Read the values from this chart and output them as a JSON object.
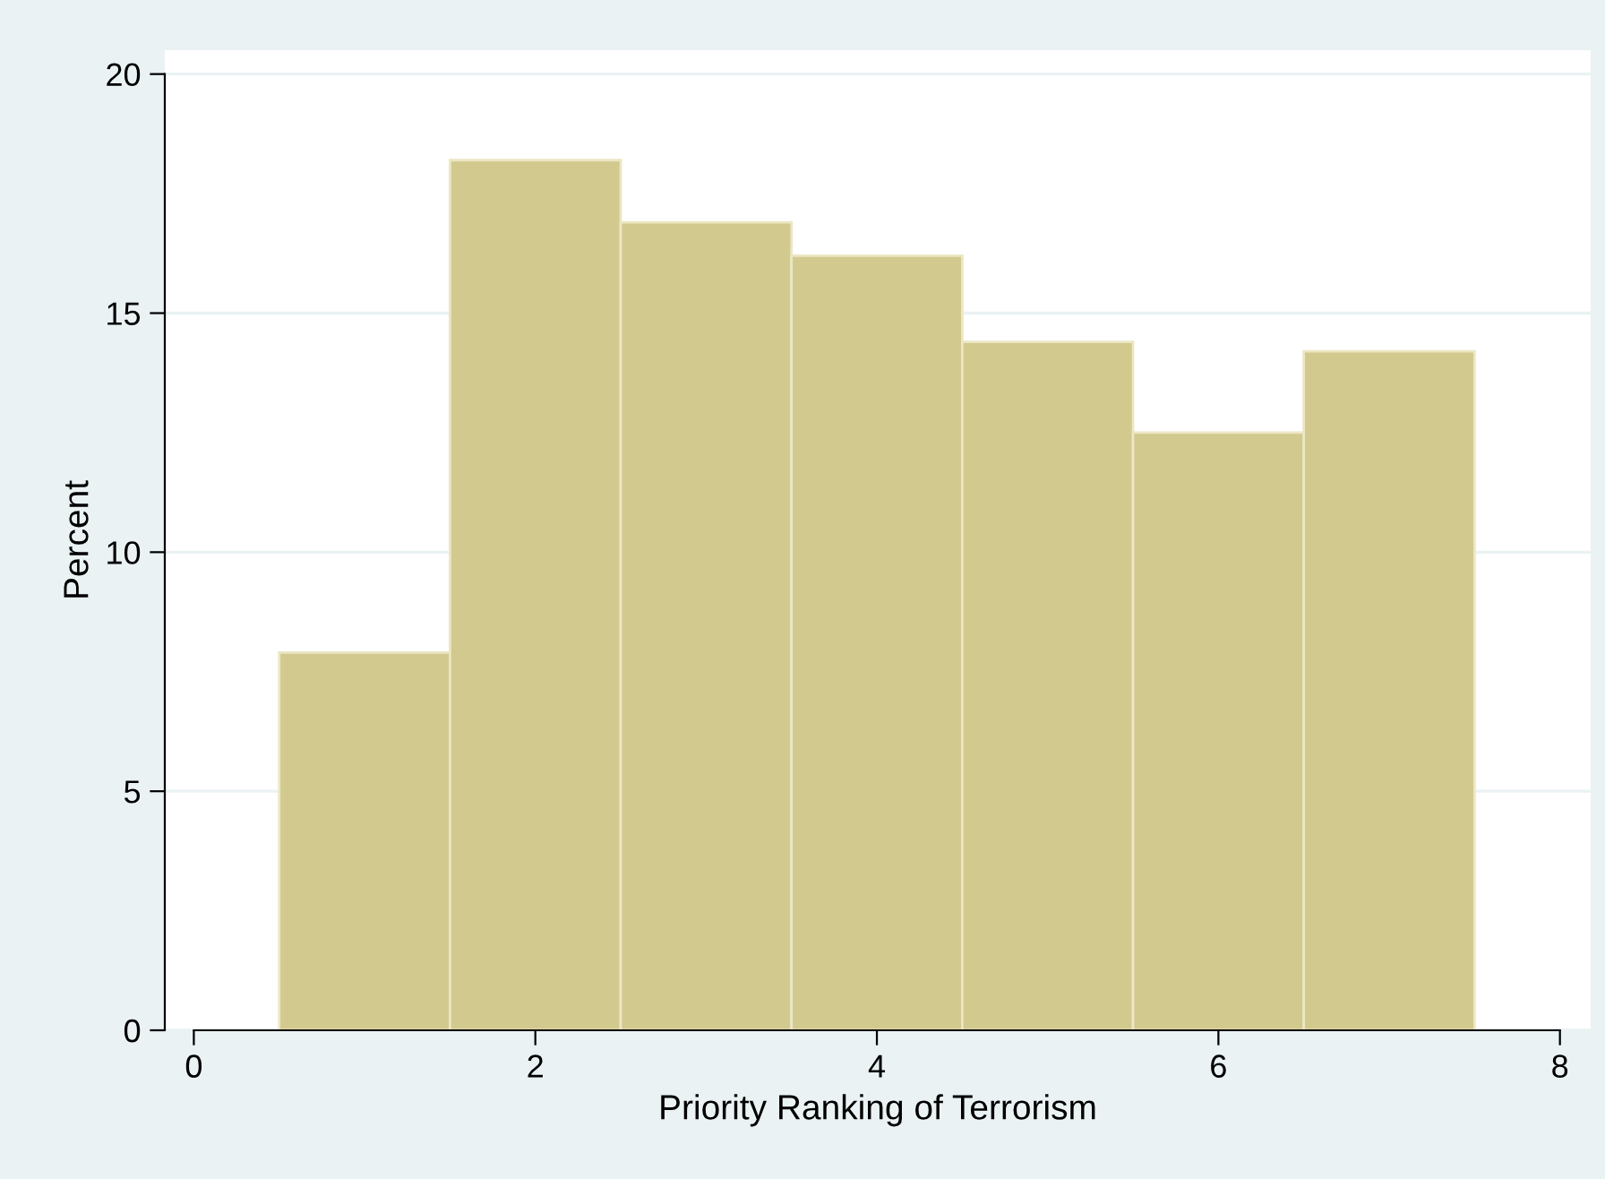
{
  "chart_data": {
    "type": "histogram",
    "xlabel": "Priority Ranking of Terrorism",
    "ylabel": "Percent",
    "bins": [
      0.5,
      1.5,
      2.5,
      3.5,
      4.5,
      5.5,
      6.5,
      7.5
    ],
    "values": [
      7.9,
      18.2,
      16.9,
      16.2,
      14.4,
      12.5,
      14.2
    ],
    "color": "#d2c98e",
    "xlim": [
      -0.17,
      8.18
    ],
    "ylim": [
      0,
      20.5
    ],
    "xticks": [
      0,
      2,
      4,
      6,
      8
    ],
    "yticks": [
      0,
      5,
      10,
      15,
      20
    ],
    "grid": "y"
  }
}
